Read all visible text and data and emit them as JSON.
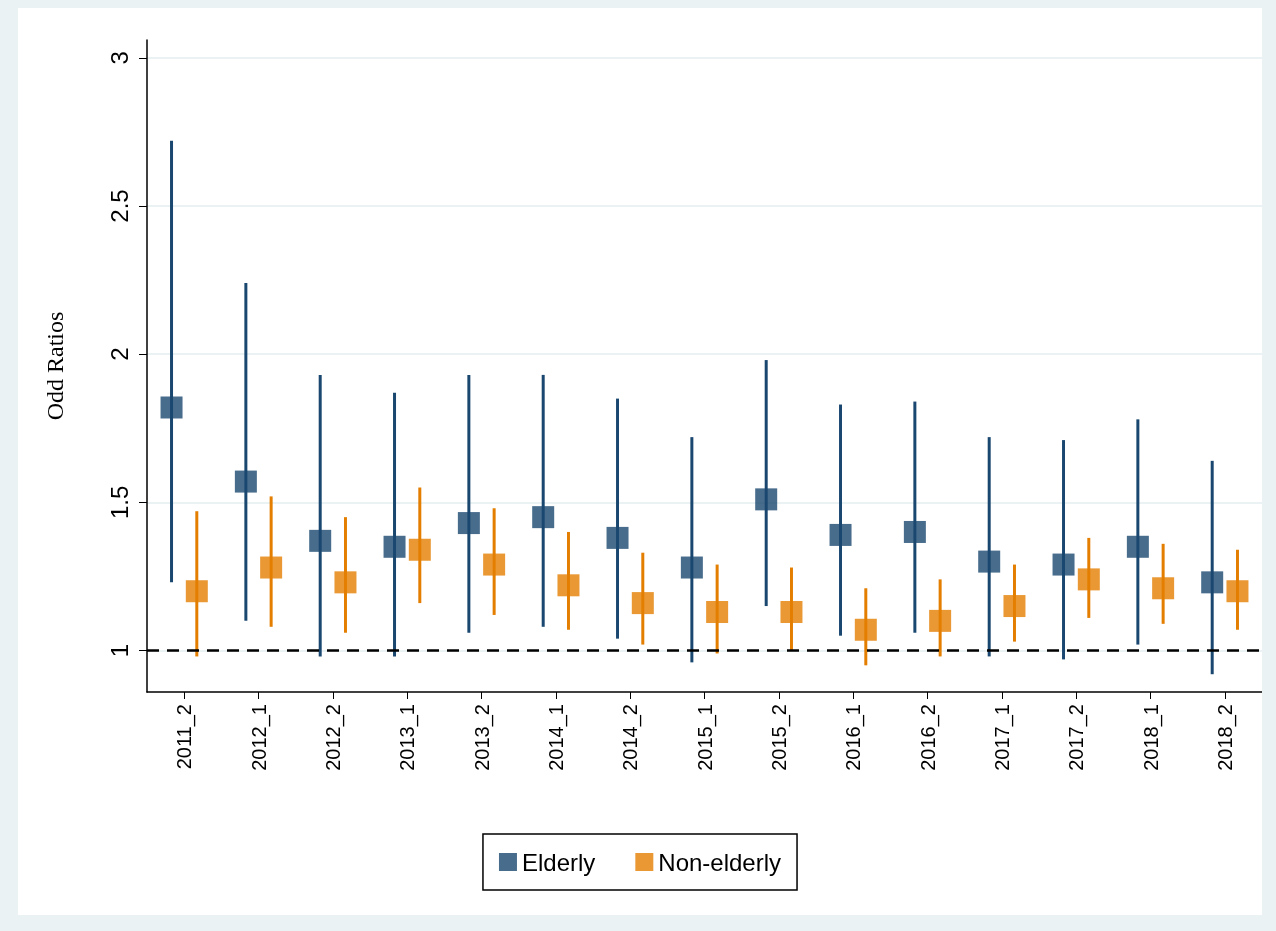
{
  "chart_data": {
    "type": "scatter",
    "ylabel": "Odd Ratios",
    "categories": [
      "2011_2",
      "2012_1",
      "2012_2",
      "2013_1",
      "2013_2",
      "2014_1",
      "2014_2",
      "2015_1",
      "2015_2",
      "2016_1",
      "2016_2",
      "2017_1",
      "2017_2",
      "2018_1",
      "2018_2"
    ],
    "series": [
      {
        "name": "Elderly",
        "color": "#1a476f",
        "values": [
          1.82,
          1.57,
          1.37,
          1.35,
          1.43,
          1.45,
          1.38,
          1.28,
          1.51,
          1.39,
          1.4,
          1.3,
          1.29,
          1.35,
          1.23
        ],
        "errors": [
          [
            1.23,
            2.72
          ],
          [
            1.1,
            2.24
          ],
          [
            0.98,
            1.93
          ],
          [
            0.98,
            1.87
          ],
          [
            1.06,
            1.93
          ],
          [
            1.08,
            1.93
          ],
          [
            1.04,
            1.85
          ],
          [
            0.96,
            1.72
          ],
          [
            1.15,
            1.98
          ],
          [
            1.05,
            1.83
          ],
          [
            1.06,
            1.84
          ],
          [
            0.98,
            1.72
          ],
          [
            0.97,
            1.71
          ],
          [
            1.02,
            1.78
          ],
          [
            0.92,
            1.64
          ]
        ]
      },
      {
        "name": "Non-elderly",
        "color": "#e37e00",
        "values": [
          1.2,
          1.28,
          1.23,
          1.34,
          1.29,
          1.22,
          1.16,
          1.13,
          1.13,
          1.07,
          1.1,
          1.15,
          1.24,
          1.21,
          1.2
        ],
        "errors": [
          [
            0.98,
            1.47
          ],
          [
            1.08,
            1.52
          ],
          [
            1.06,
            1.45
          ],
          [
            1.16,
            1.55
          ],
          [
            1.12,
            1.48
          ],
          [
            1.07,
            1.4
          ],
          [
            1.02,
            1.33
          ],
          [
            0.99,
            1.29
          ],
          [
            1.0,
            1.28
          ],
          [
            0.95,
            1.21
          ],
          [
            0.98,
            1.24
          ],
          [
            1.03,
            1.29
          ],
          [
            1.11,
            1.38
          ],
          [
            1.09,
            1.36
          ],
          [
            1.07,
            1.34
          ]
        ]
      }
    ],
    "ylim": [
      0.86,
      3.06
    ],
    "yticks": [
      1,
      1.5,
      2,
      2.5,
      3
    ],
    "grid": "y",
    "legend": "bottom",
    "marker": "square",
    "ref_lines": [
      {
        "axis": "y",
        "value": 1,
        "color": "#000000",
        "line_style": "dashed"
      }
    ]
  }
}
